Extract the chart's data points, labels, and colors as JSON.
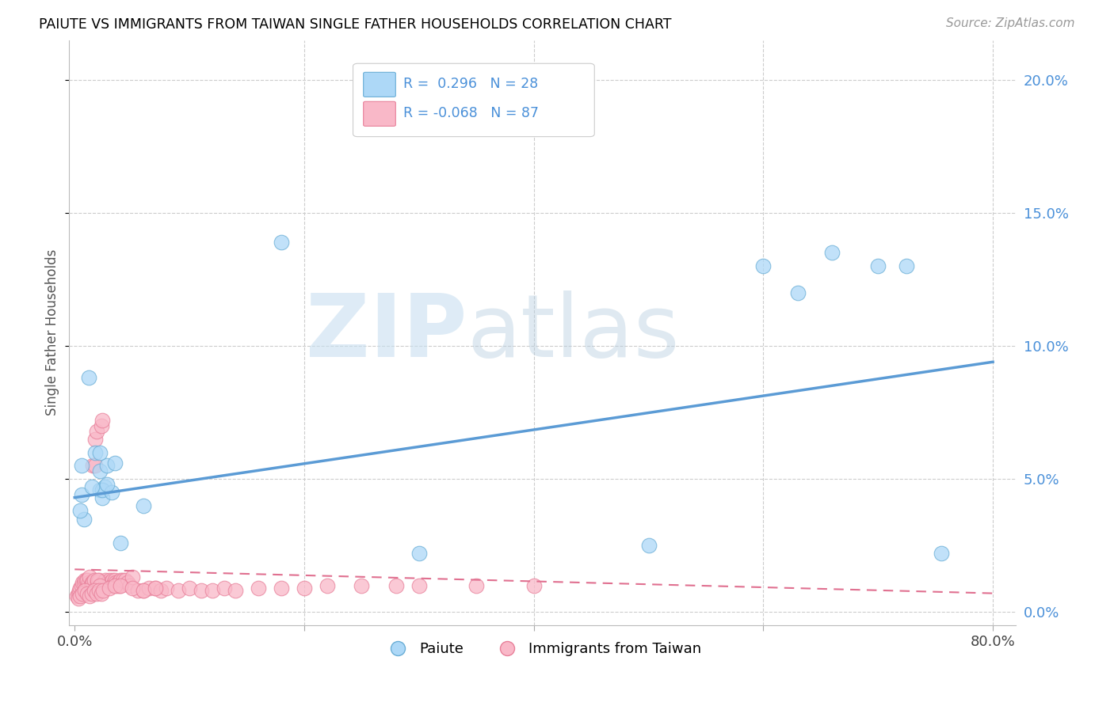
{
  "title": "PAIUTE VS IMMIGRANTS FROM TAIWAN SINGLE FATHER HOUSEHOLDS CORRELATION CHART",
  "source": "Source: ZipAtlas.com",
  "ylabel": "Single Father Households",
  "xlim": [
    -0.005,
    0.82
  ],
  "ylim": [
    -0.005,
    0.215
  ],
  "yticks": [
    0.0,
    0.05,
    0.1,
    0.15,
    0.2
  ],
  "ytick_labels": [
    "0.0%",
    "5.0%",
    "10.0%",
    "15.0%",
    "20.0%"
  ],
  "xticks": [
    0.0,
    0.2,
    0.4,
    0.6,
    0.8
  ],
  "xtick_labels": [
    "0.0%",
    "",
    "",
    "",
    "80.0%"
  ],
  "paiute_color": "#add8f7",
  "taiwan_color": "#f9b8c8",
  "paiute_edge_color": "#6aaed6",
  "taiwan_edge_color": "#e8809a",
  "paiute_line_color": "#5b9bd5",
  "taiwan_line_color": "#e07090",
  "legend_r1": "R =  0.296",
  "legend_n1": "N = 28",
  "legend_r2": "R = -0.068",
  "legend_n2": "N = 87",
  "paiute_line_x0": 0.0,
  "paiute_line_y0": 0.043,
  "paiute_line_x1": 0.8,
  "paiute_line_y1": 0.094,
  "taiwan_line_x0": 0.0,
  "taiwan_line_y0": 0.016,
  "taiwan_line_x1": 0.8,
  "taiwan_line_y1": 0.007,
  "paiute_x": [
    0.008,
    0.012,
    0.022,
    0.005,
    0.006,
    0.018,
    0.022,
    0.024,
    0.026,
    0.028,
    0.006,
    0.024,
    0.032,
    0.6,
    0.63,
    0.66,
    0.7,
    0.725,
    0.755,
    0.3,
    0.18,
    0.5,
    0.04,
    0.06,
    0.022,
    0.015,
    0.028,
    0.035
  ],
  "paiute_y": [
    0.035,
    0.088,
    0.046,
    0.038,
    0.055,
    0.06,
    0.053,
    0.043,
    0.047,
    0.055,
    0.044,
    0.046,
    0.045,
    0.13,
    0.12,
    0.135,
    0.13,
    0.13,
    0.022,
    0.022,
    0.139,
    0.025,
    0.026,
    0.04,
    0.06,
    0.047,
    0.048,
    0.056
  ],
  "taiwan_x": [
    0.002,
    0.003,
    0.004,
    0.005,
    0.006,
    0.007,
    0.008,
    0.009,
    0.01,
    0.011,
    0.012,
    0.013,
    0.014,
    0.015,
    0.016,
    0.017,
    0.018,
    0.019,
    0.02,
    0.021,
    0.022,
    0.023,
    0.024,
    0.025,
    0.026,
    0.027,
    0.028,
    0.029,
    0.03,
    0.031,
    0.032,
    0.033,
    0.034,
    0.035,
    0.036,
    0.037,
    0.038,
    0.039,
    0.04,
    0.042,
    0.044,
    0.046,
    0.048,
    0.05,
    0.055,
    0.06,
    0.065,
    0.07,
    0.075,
    0.08,
    0.09,
    0.1,
    0.11,
    0.12,
    0.13,
    0.14,
    0.16,
    0.18,
    0.2,
    0.22,
    0.25,
    0.28,
    0.3,
    0.35,
    0.4,
    0.016,
    0.018,
    0.02,
    0.022,
    0.003,
    0.005,
    0.007,
    0.009,
    0.011,
    0.013,
    0.015,
    0.017,
    0.019,
    0.021,
    0.023,
    0.025,
    0.03,
    0.035,
    0.04,
    0.05,
    0.06,
    0.07
  ],
  "taiwan_y": [
    0.006,
    0.007,
    0.008,
    0.009,
    0.01,
    0.011,
    0.011,
    0.012,
    0.012,
    0.012,
    0.011,
    0.013,
    0.01,
    0.011,
    0.011,
    0.012,
    0.065,
    0.068,
    0.011,
    0.012,
    0.01,
    0.07,
    0.072,
    0.011,
    0.01,
    0.012,
    0.01,
    0.011,
    0.012,
    0.011,
    0.01,
    0.012,
    0.011,
    0.012,
    0.011,
    0.01,
    0.011,
    0.01,
    0.012,
    0.012,
    0.012,
    0.011,
    0.01,
    0.013,
    0.008,
    0.008,
    0.009,
    0.009,
    0.008,
    0.009,
    0.008,
    0.009,
    0.008,
    0.008,
    0.009,
    0.008,
    0.009,
    0.009,
    0.009,
    0.01,
    0.01,
    0.01,
    0.01,
    0.01,
    0.01,
    0.055,
    0.055,
    0.012,
    0.01,
    0.005,
    0.006,
    0.007,
    0.008,
    0.007,
    0.006,
    0.007,
    0.008,
    0.007,
    0.008,
    0.007,
    0.008,
    0.009,
    0.01,
    0.01,
    0.009,
    0.008,
    0.009
  ]
}
